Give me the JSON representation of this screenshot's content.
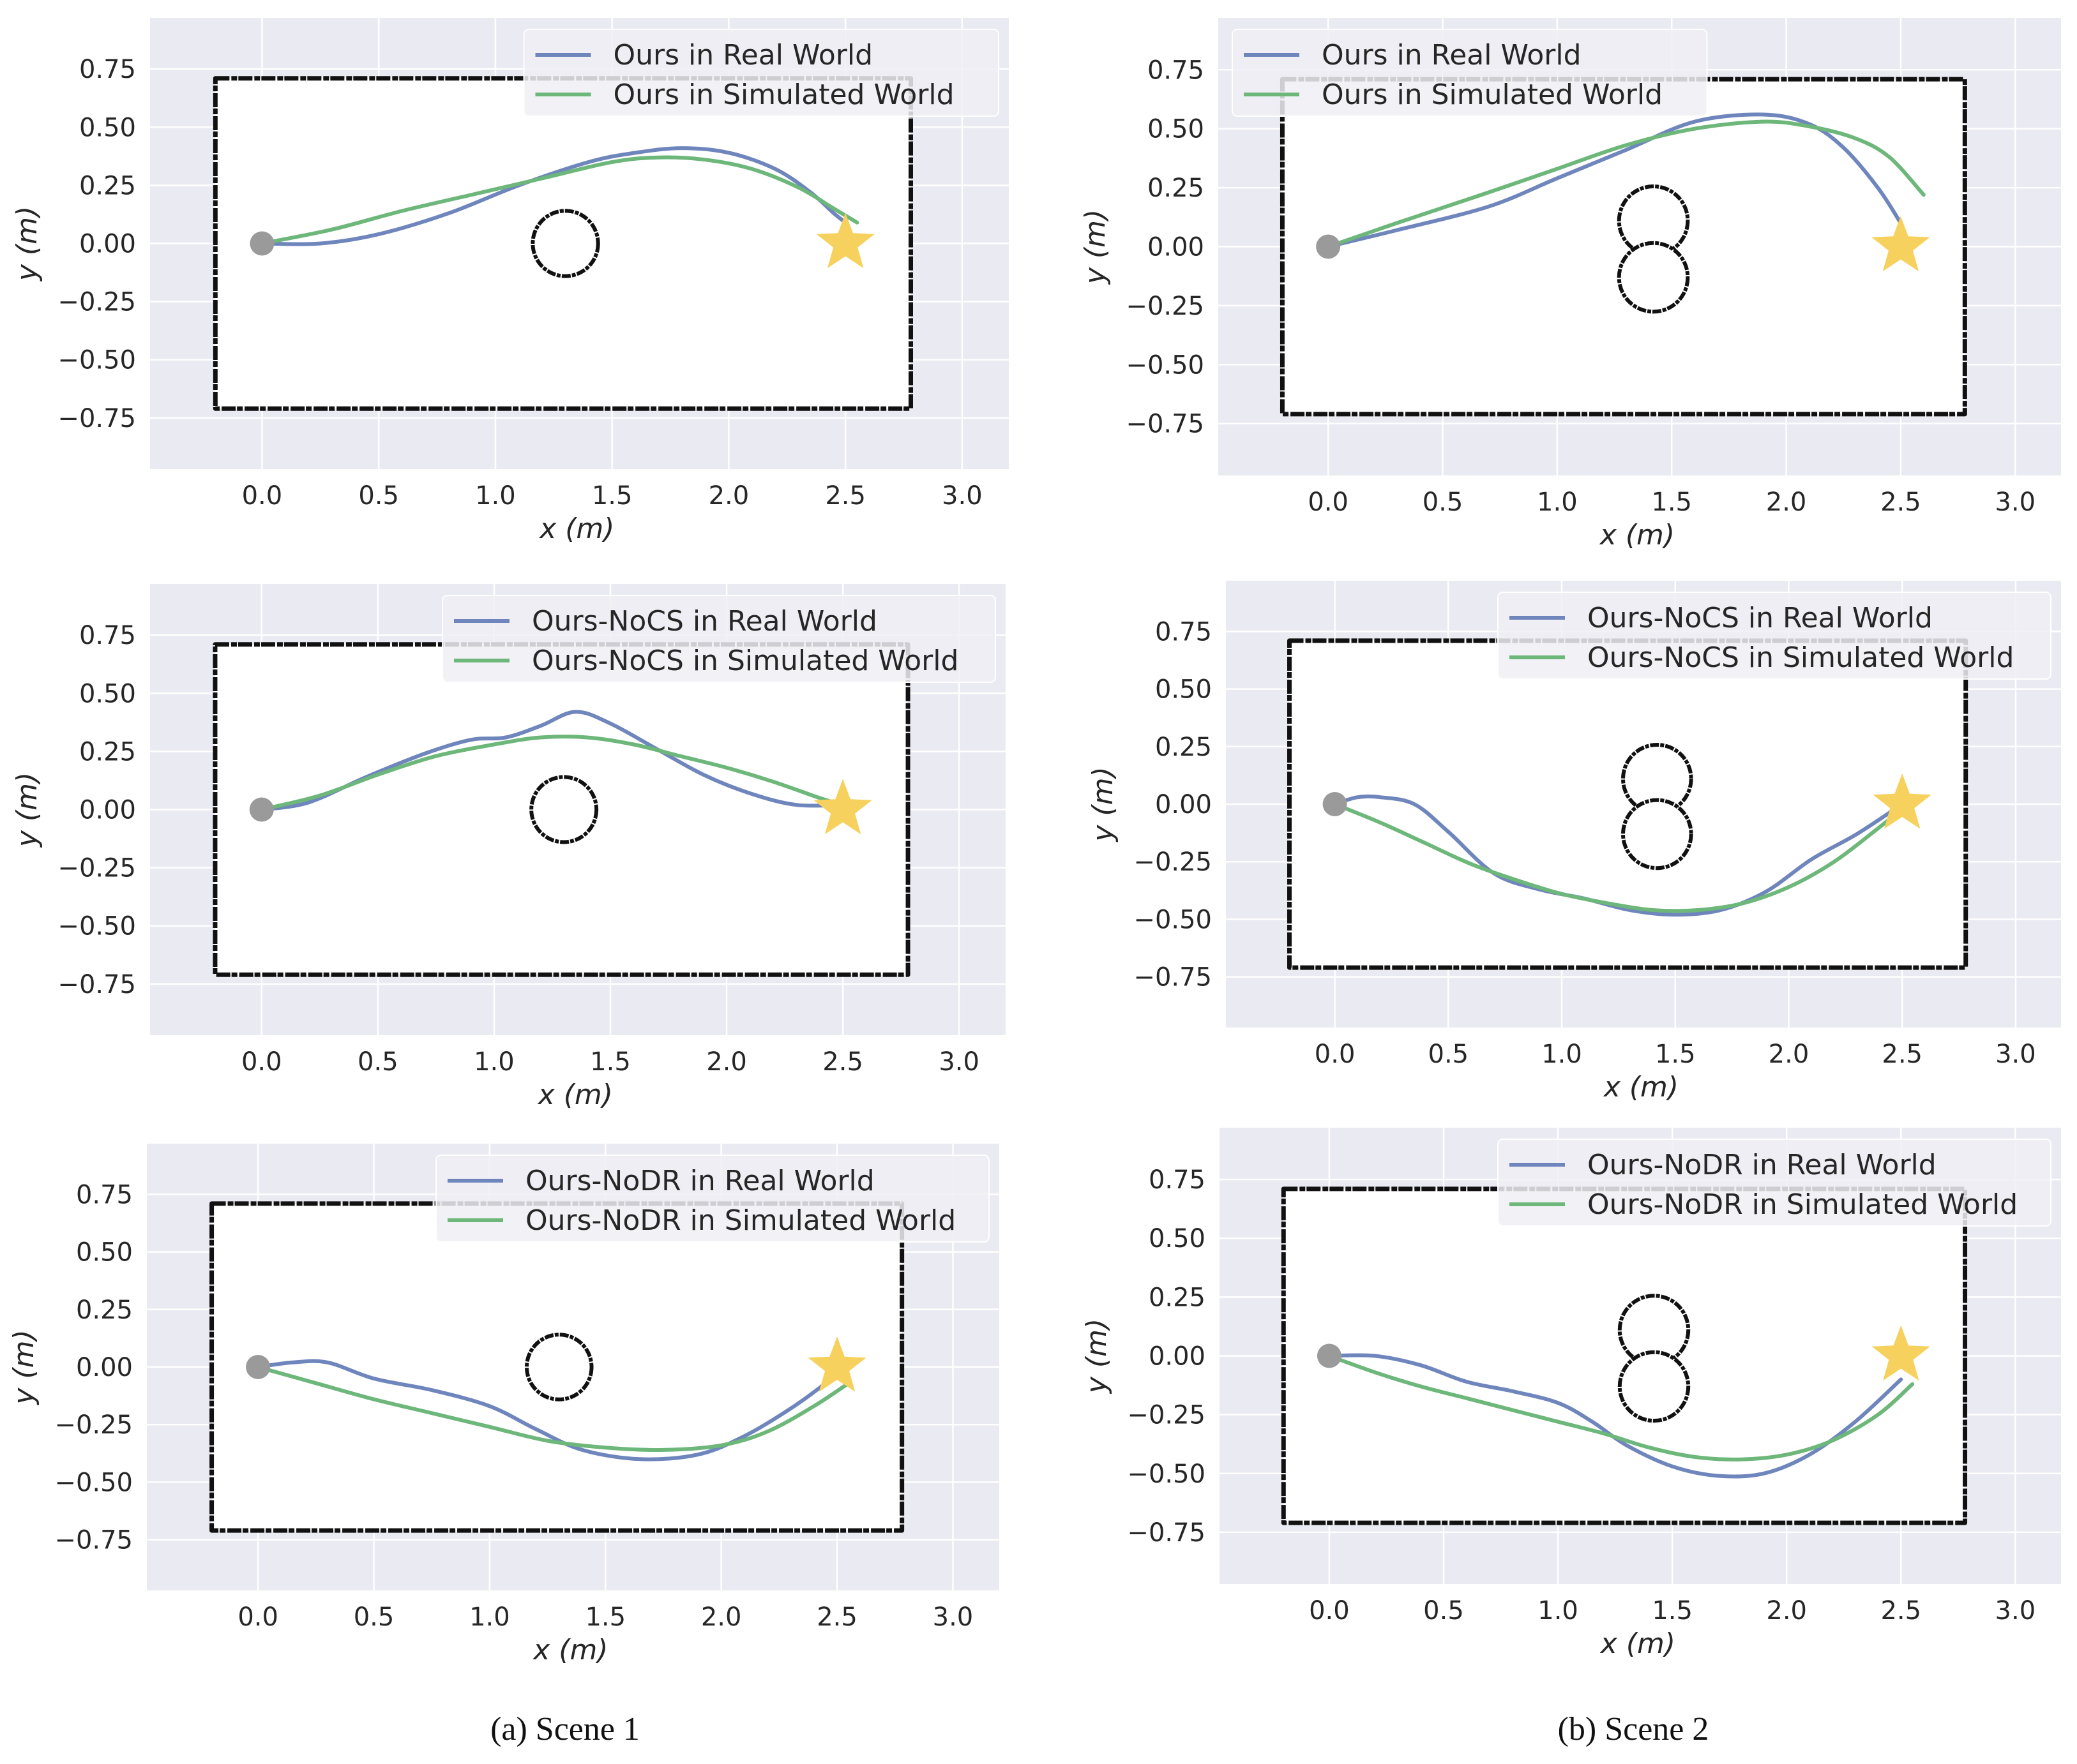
{
  "colors": {
    "real": "#6f86bd",
    "sim": "#6db77a",
    "axes_bg": "#eaeaf2",
    "grid": "#ffffff",
    "wall": "#111111",
    "start": "#9a9a9a",
    "goal": "#f7d15e"
  },
  "captions": [
    "(a) Scene 1",
    "(b) Scene 2"
  ],
  "chart_data": [
    {
      "type": "line",
      "scene": 1,
      "xlabel": "x (m)",
      "ylabel": "y (m)",
      "xlim": [
        -0.48,
        3.2
      ],
      "ylim": [
        -0.97,
        0.97
      ],
      "xticks": [
        "0.0",
        "0.5",
        "1.0",
        "1.5",
        "2.0",
        "2.5",
        "3.0"
      ],
      "yticks": [
        "0.75",
        "0.50",
        "0.25",
        "0.00",
        "−0.25",
        "−0.50",
        "−0.75"
      ],
      "legend": "top-right",
      "series": [
        {
          "name": "Ours in Real World",
          "color_key": "real",
          "x": [
            0,
            0.25,
            0.5,
            0.8,
            1.1,
            1.4,
            1.6,
            1.8,
            2.0,
            2.2,
            2.35,
            2.45,
            2.5
          ],
          "y": [
            0,
            0.0,
            0.04,
            0.13,
            0.25,
            0.35,
            0.39,
            0.41,
            0.39,
            0.32,
            0.22,
            0.13,
            0.09
          ]
        },
        {
          "name": "Ours in Simulated World",
          "color_key": "sim",
          "x": [
            0,
            0.3,
            0.6,
            0.9,
            1.2,
            1.5,
            1.7,
            1.9,
            2.1,
            2.3,
            2.45,
            2.55
          ],
          "y": [
            0,
            0.06,
            0.14,
            0.21,
            0.28,
            0.35,
            0.37,
            0.36,
            0.32,
            0.24,
            0.15,
            0.09
          ]
        }
      ],
      "obstacle": "circle",
      "start": [
        0,
        0
      ],
      "goal": [
        2.5,
        0
      ]
    },
    {
      "type": "line",
      "scene": 2,
      "xlabel": "x (m)",
      "ylabel": "y (m)",
      "xlim": [
        -0.48,
        3.2
      ],
      "ylim": [
        -0.97,
        0.97
      ],
      "xticks": [
        "0.0",
        "0.5",
        "1.0",
        "1.5",
        "2.0",
        "2.5",
        "3.0"
      ],
      "yticks": [
        "0.75",
        "0.50",
        "0.25",
        "0.00",
        "−0.25",
        "−0.50",
        "−0.75"
      ],
      "legend": "top-left",
      "series": [
        {
          "name": "Ours in Real World",
          "color_key": "real",
          "x": [
            0,
            0.3,
            0.7,
            1.0,
            1.3,
            1.6,
            1.9,
            2.1,
            2.25,
            2.4,
            2.5
          ],
          "y": [
            0,
            0.07,
            0.17,
            0.29,
            0.41,
            0.53,
            0.56,
            0.52,
            0.42,
            0.25,
            0.1
          ]
        },
        {
          "name": "Ours in Simulated World",
          "color_key": "sim",
          "x": [
            0,
            0.3,
            0.7,
            1.0,
            1.3,
            1.6,
            1.9,
            2.1,
            2.3,
            2.45,
            2.6
          ],
          "y": [
            0,
            0.1,
            0.23,
            0.33,
            0.43,
            0.5,
            0.53,
            0.51,
            0.46,
            0.38,
            0.22
          ]
        }
      ],
      "obstacle": "double-circle",
      "start": [
        0,
        0
      ],
      "goal": [
        2.5,
        0
      ]
    },
    {
      "type": "line",
      "scene": 1,
      "xlabel": "x (m)",
      "ylabel": "y (m)",
      "xlim": [
        -0.48,
        3.2
      ],
      "ylim": [
        -0.97,
        0.97
      ],
      "xticks": [
        "0.0",
        "0.5",
        "1.0",
        "1.5",
        "2.0",
        "2.5",
        "3.0"
      ],
      "yticks": [
        "0.75",
        "0.50",
        "0.25",
        "0.00",
        "−0.25",
        "−0.50",
        "−0.75"
      ],
      "legend": "top-right",
      "series": [
        {
          "name": "Ours-NoCS in Real World",
          "color_key": "real",
          "x": [
            0,
            0.2,
            0.45,
            0.7,
            0.9,
            1.05,
            1.2,
            1.35,
            1.5,
            1.7,
            1.9,
            2.1,
            2.3,
            2.5
          ],
          "y": [
            0,
            0.03,
            0.14,
            0.24,
            0.3,
            0.31,
            0.36,
            0.42,
            0.37,
            0.26,
            0.15,
            0.07,
            0.02,
            0.02
          ]
        },
        {
          "name": "Ours-NoCS in Simulated World",
          "color_key": "sim",
          "x": [
            0,
            0.25,
            0.5,
            0.75,
            1.0,
            1.2,
            1.4,
            1.6,
            1.8,
            2.0,
            2.2,
            2.4,
            2.5
          ],
          "y": [
            0,
            0.06,
            0.15,
            0.23,
            0.28,
            0.31,
            0.31,
            0.28,
            0.23,
            0.18,
            0.12,
            0.05,
            0.02
          ]
        }
      ],
      "obstacle": "circle",
      "start": [
        0,
        0
      ],
      "goal": [
        2.5,
        0
      ]
    },
    {
      "type": "line",
      "scene": 2,
      "xlabel": "x (m)",
      "ylabel": "y (m)",
      "xlim": [
        -0.48,
        3.2
      ],
      "ylim": [
        -0.97,
        0.97
      ],
      "xticks": [
        "0.0",
        "0.5",
        "1.0",
        "1.5",
        "2.0",
        "2.5",
        "3.0"
      ],
      "yticks": [
        "0.75",
        "0.50",
        "0.25",
        "0.00",
        "−0.25",
        "−0.50",
        "−0.75"
      ],
      "legend": "top-right",
      "series": [
        {
          "name": "Ours-NoCS in Real World",
          "color_key": "real",
          "x": [
            0,
            0.1,
            0.2,
            0.35,
            0.5,
            0.7,
            0.9,
            1.1,
            1.3,
            1.5,
            1.7,
            1.9,
            2.1,
            2.3,
            2.5
          ],
          "y": [
            0,
            0.03,
            0.03,
            0.0,
            -0.12,
            -0.3,
            -0.37,
            -0.41,
            -0.46,
            -0.48,
            -0.46,
            -0.38,
            -0.24,
            -0.13,
            0.0
          ]
        },
        {
          "name": "Ours-NoCS in Simulated World",
          "color_key": "sim",
          "x": [
            0,
            0.2,
            0.4,
            0.6,
            0.8,
            1.0,
            1.2,
            1.4,
            1.6,
            1.8,
            2.0,
            2.2,
            2.4,
            2.5
          ],
          "y": [
            0,
            -0.08,
            -0.17,
            -0.26,
            -0.33,
            -0.39,
            -0.43,
            -0.46,
            -0.46,
            -0.43,
            -0.36,
            -0.25,
            -0.1,
            -0.02
          ]
        }
      ],
      "obstacle": "double-circle",
      "start": [
        0,
        0
      ],
      "goal": [
        2.5,
        0
      ]
    },
    {
      "type": "line",
      "scene": 1,
      "xlabel": "x (m)",
      "ylabel": "y (m)",
      "xlim": [
        -0.48,
        3.2
      ],
      "ylim": [
        -0.97,
        0.97
      ],
      "xticks": [
        "0.0",
        "0.5",
        "1.0",
        "1.5",
        "2.0",
        "2.5",
        "3.0"
      ],
      "yticks": [
        "0.75",
        "0.50",
        "0.25",
        "0.00",
        "−0.25",
        "−0.50",
        "−0.75"
      ],
      "legend": "top-right",
      "series": [
        {
          "name": "Ours-NoDR in Real World",
          "color_key": "real",
          "x": [
            0,
            0.15,
            0.3,
            0.5,
            0.75,
            1.0,
            1.2,
            1.4,
            1.65,
            1.9,
            2.1,
            2.3,
            2.45,
            2.5
          ],
          "y": [
            0,
            0.02,
            0.02,
            -0.05,
            -0.1,
            -0.17,
            -0.27,
            -0.36,
            -0.4,
            -0.38,
            -0.3,
            -0.18,
            -0.07,
            -0.02
          ]
        },
        {
          "name": "Ours-NoDR in Simulated World",
          "color_key": "sim",
          "x": [
            0,
            0.25,
            0.5,
            0.75,
            1.0,
            1.25,
            1.5,
            1.75,
            2.0,
            2.2,
            2.4,
            2.55
          ],
          "y": [
            0,
            -0.07,
            -0.14,
            -0.2,
            -0.26,
            -0.32,
            -0.35,
            -0.36,
            -0.34,
            -0.28,
            -0.17,
            -0.07
          ]
        }
      ],
      "obstacle": "circle",
      "start": [
        0,
        0
      ],
      "goal": [
        2.5,
        0
      ]
    },
    {
      "type": "line",
      "scene": 2,
      "xlabel": "x (m)",
      "ylabel": "y (m)",
      "xlim": [
        -0.48,
        3.2
      ],
      "ylim": [
        -0.97,
        0.97
      ],
      "xticks": [
        "0.0",
        "0.5",
        "1.0",
        "1.5",
        "2.0",
        "2.5",
        "3.0"
      ],
      "yticks": [
        "0.75",
        "0.50",
        "0.25",
        "0.00",
        "−0.25",
        "−0.50",
        "−0.75"
      ],
      "legend": "top-right",
      "series": [
        {
          "name": "Ours-NoDR in Real World",
          "color_key": "real",
          "x": [
            0,
            0.2,
            0.4,
            0.6,
            0.8,
            1.0,
            1.15,
            1.3,
            1.5,
            1.7,
            1.9,
            2.1,
            2.3,
            2.5
          ],
          "y": [
            0,
            0.0,
            -0.04,
            -0.11,
            -0.15,
            -0.2,
            -0.28,
            -0.38,
            -0.47,
            -0.51,
            -0.5,
            -0.42,
            -0.28,
            -0.1
          ]
        },
        {
          "name": "Ours-NoDR in Simulated World",
          "color_key": "sim",
          "x": [
            0,
            0.2,
            0.4,
            0.6,
            0.8,
            1.0,
            1.2,
            1.4,
            1.6,
            1.8,
            2.0,
            2.2,
            2.4,
            2.55
          ],
          "y": [
            0,
            -0.07,
            -0.13,
            -0.18,
            -0.23,
            -0.28,
            -0.33,
            -0.39,
            -0.43,
            -0.44,
            -0.42,
            -0.36,
            -0.25,
            -0.12
          ]
        }
      ],
      "obstacle": "double-circle",
      "start": [
        0,
        0
      ],
      "goal": [
        2.5,
        0
      ]
    }
  ]
}
